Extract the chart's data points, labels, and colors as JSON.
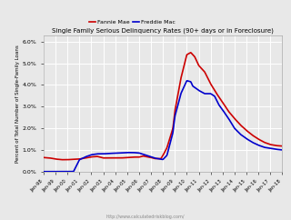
{
  "title": "Single Family Serious Delinquency Rates (90+ days or in Foreclosure)",
  "ylabel": "Percent of Total Number of Single-Family Loans",
  "watermark": "http://www.calculatedriskblog.com/",
  "legend_fannie": "Fannie Mae",
  "legend_freddie": "Freddie Mac",
  "fannie_color": "#cc0000",
  "freddie_color": "#0000cc",
  "ylim": [
    0.0,
    0.063
  ],
  "yticks": [
    0.0,
    0.01,
    0.02,
    0.03,
    0.04,
    0.05,
    0.06
  ],
  "ytick_labels": [
    "0.0%",
    "1.0%",
    "2.0%",
    "3.0%",
    "4.0%",
    "5.0%",
    "6.0%"
  ],
  "x_labels": [
    "Jan-98",
    "Jan-99",
    "Jan-00",
    "Jan-01",
    "Jan-02",
    "Jan-03",
    "Jan-04",
    "Jan-05",
    "Jan-06",
    "Jan-07",
    "Jan-08",
    "Jan-09",
    "Jan-10",
    "Jan-11",
    "Jan-12",
    "Jan-13",
    "Jan-14",
    "Jan-15",
    "Jan-16",
    "Jan-17",
    "Jan-18"
  ],
  "background_color": "#e8e8e8",
  "grid_color": "#ffffff",
  "line_width": 1.2
}
